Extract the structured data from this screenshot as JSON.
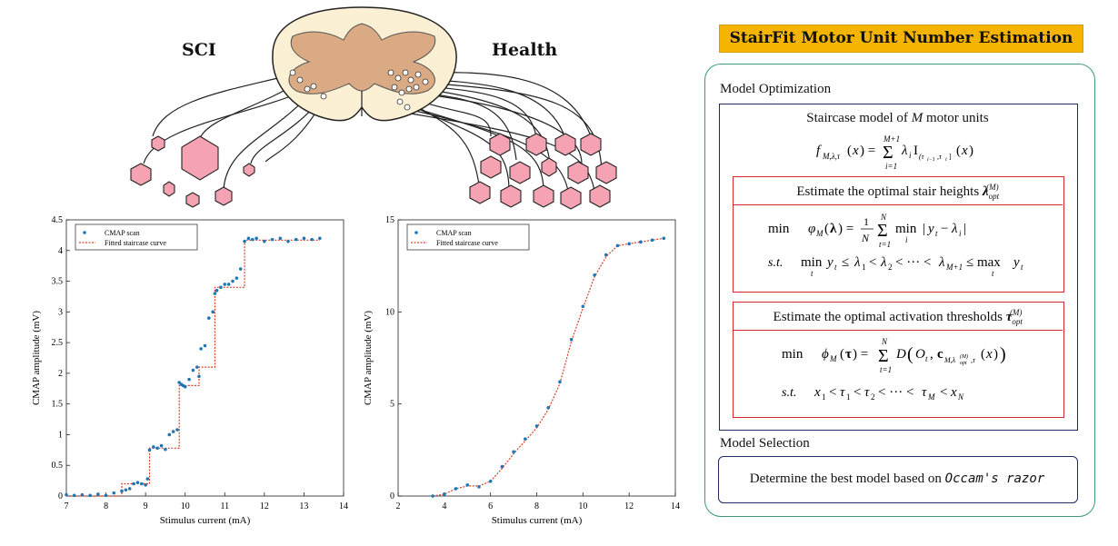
{
  "illustration": {
    "left_label": "SCI",
    "right_label": "Health"
  },
  "chart_data": [
    {
      "type": "scatter",
      "title": "SCI",
      "xlabel": "Stimulus current (mA)",
      "ylabel": "CMAP amplitude (mV)",
      "xlim": [
        7,
        14
      ],
      "ylim": [
        0,
        4.5
      ],
      "xticks": [
        "7",
        "8",
        "9",
        "10",
        "11",
        "12",
        "13",
        "14"
      ],
      "yticks": [
        "0",
        "0.5",
        "1",
        "1.5",
        "2",
        "2.5",
        "3",
        "3.5",
        "4",
        "4.5"
      ],
      "legend": [
        "CMAP scan",
        "Fitted staircase curve"
      ],
      "series": [
        {
          "name": "CMAP scan",
          "x": [
            7.0,
            7.2,
            7.4,
            7.6,
            7.8,
            8.0,
            8.2,
            8.4,
            8.5,
            8.6,
            8.7,
            8.8,
            8.9,
            9.0,
            9.05,
            9.1,
            9.2,
            9.3,
            9.4,
            9.5,
            9.6,
            9.7,
            9.8,
            9.85,
            9.9,
            9.95,
            10.0,
            10.1,
            10.2,
            10.3,
            10.35,
            10.4,
            10.5,
            10.6,
            10.7,
            10.75,
            10.8,
            10.9,
            11.0,
            11.1,
            11.2,
            11.3,
            11.4,
            11.5,
            11.6,
            11.7,
            11.8,
            12.0,
            12.2,
            12.4,
            12.6,
            12.8,
            13.0,
            13.2,
            13.4
          ],
          "y": [
            0.02,
            0.01,
            0.02,
            0.01,
            0.03,
            0.01,
            0.05,
            0.08,
            0.1,
            0.12,
            0.2,
            0.22,
            0.2,
            0.18,
            0.28,
            0.75,
            0.8,
            0.78,
            0.82,
            0.76,
            1.0,
            1.05,
            1.08,
            1.85,
            1.82,
            1.8,
            1.78,
            1.9,
            2.05,
            2.1,
            1.95,
            2.4,
            2.45,
            2.9,
            3.0,
            3.3,
            3.35,
            3.4,
            3.45,
            3.45,
            3.5,
            3.55,
            3.7,
            4.15,
            4.2,
            4.18,
            4.2,
            4.15,
            4.18,
            4.2,
            4.15,
            4.18,
            4.2,
            4.18,
            4.2
          ]
        },
        {
          "name": "Fitted staircase curve",
          "x": [
            7.0,
            8.4,
            8.4,
            9.1,
            9.1,
            9.85,
            9.85,
            10.35,
            10.35,
            10.75,
            10.75,
            11.5,
            11.5,
            13.4
          ],
          "y": [
            0.0,
            0.0,
            0.2,
            0.2,
            0.78,
            0.78,
            1.8,
            1.8,
            2.1,
            2.1,
            3.4,
            3.4,
            4.17,
            4.17
          ]
        }
      ]
    },
    {
      "type": "scatter",
      "title": "Health",
      "xlabel": "Stimulus current (mA)",
      "ylabel": "CMAP amplitude (mV)",
      "xlim": [
        2,
        14
      ],
      "ylim": [
        0,
        15
      ],
      "xticks": [
        "2",
        "4",
        "6",
        "8",
        "10",
        "12",
        "14"
      ],
      "yticks": [
        "0",
        "5",
        "10",
        "15"
      ],
      "legend": [
        "CMAP scan",
        "Fitted staircase curve"
      ],
      "series": [
        {
          "name": "CMAP scan",
          "x": [
            3.5,
            4.0,
            4.5,
            5.0,
            5.5,
            6.0,
            6.5,
            7.0,
            7.5,
            8.0,
            8.5,
            9.0,
            9.5,
            10.0,
            10.5,
            11.0,
            11.5,
            12.0,
            12.5,
            13.0,
            13.5
          ],
          "y": [
            0.0,
            0.1,
            0.4,
            0.6,
            0.5,
            0.8,
            1.6,
            2.4,
            3.1,
            3.8,
            4.8,
            6.2,
            8.5,
            10.3,
            12.0,
            13.1,
            13.6,
            13.7,
            13.8,
            13.9,
            14.0
          ]
        },
        {
          "name": "Fitted staircase curve",
          "x": [
            3.5,
            4.0,
            4.5,
            5.0,
            5.5,
            6.0,
            6.5,
            7.0,
            7.5,
            8.0,
            8.5,
            9.0,
            9.5,
            10.0,
            10.5,
            11.0,
            11.5,
            12.0,
            12.5,
            13.0,
            13.5
          ],
          "y": [
            0.0,
            0.1,
            0.4,
            0.55,
            0.55,
            0.8,
            1.5,
            2.3,
            3.0,
            3.7,
            4.7,
            6.1,
            8.4,
            10.2,
            11.9,
            13.0,
            13.6,
            13.7,
            13.8,
            13.9,
            14.0
          ]
        }
      ]
    }
  ],
  "panel": {
    "title": "StairFit Motor Unit Number Estimation",
    "model_optimization_label": "Model Optimization",
    "staircase_text_a": "Staircase model of",
    "staircase_var": "M",
    "staircase_text_b": "motor units",
    "staircase_formula": "f_{M,λ,τ}(x) = Σ_{i=1}^{M+1} λ_i I_{(τ_{i-1}, τ_i]}(x)",
    "stair_heights_title": "Estimate the optimal stair heights",
    "stair_heights_symbol": "λ_opt^(M)",
    "stair_heights_objective": "min  φ_M(λ) = (1/N) Σ_{t=1}^{N} min_i |y_t − λ_i|",
    "stair_heights_constraint": "s.t.  min_t y_t ≤ λ_1 < λ_2 < ··· < λ_{M+1} ≤ max_t y_t",
    "thresholds_title": "Estimate the optimal activation thresholds",
    "thresholds_symbol": "τ_opt^(M)",
    "thresholds_objective": "min  ϕ_M(τ) = Σ_{t=1}^{N} D(O_t, c_{M,λ_opt^(M),τ}(x))",
    "thresholds_constraint": "s.t.  x_1 < τ_1 < τ_2 < ··· < τ_M < x_N",
    "model_selection_label": "Model Selection",
    "selection_text": "Determine the best model based on",
    "selection_emph": "Occam's razor"
  },
  "colors": {
    "accent": "#f5b400",
    "green_border": "#3c9a7a",
    "navy_border": "#1f2a5e",
    "red_border": "#d02c2c",
    "cord_tan": "#d9aa84",
    "cord_cream": "#fbf0d4",
    "muscle_pink": "#f5a3b2",
    "scan_blue": "#1f77b4",
    "fit_red": "#d6402a"
  }
}
